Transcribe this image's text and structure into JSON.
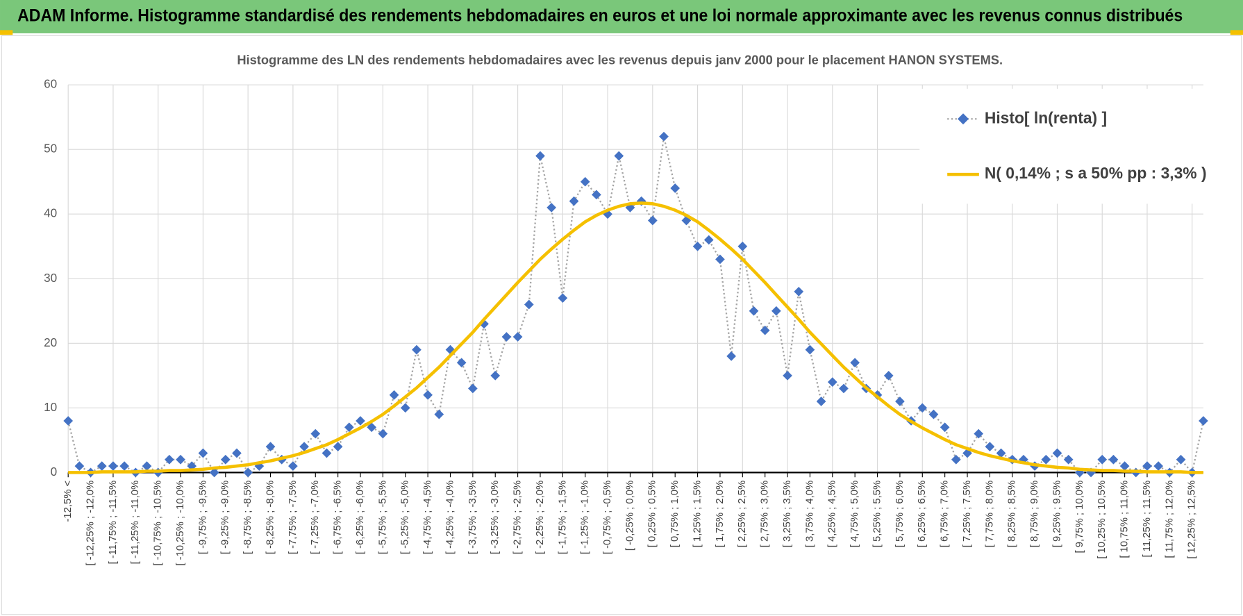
{
  "header": {
    "title": "ADAM Informe. Histogramme standardisé des rendements hebdomadaires en euros et une loi normale approximante avec les revenus connus distribués"
  },
  "chart_data": {
    "type": "line",
    "title": "Histogramme des LN des rendements hebdomadaires avec les revenus depuis janv 2000 pour le placement HANON SYSTEMS.",
    "categories": [
      "-12,5% <",
      null,
      "[ -12,25% ; -12,0%",
      null,
      "[ -11,75% ; -11,5%",
      null,
      "[ -11,25% ; -11,0%",
      null,
      "[ -10,75% ; -10,5%",
      null,
      "[ -10,25% ; -10,0%",
      null,
      "[ -9,75% ; -9,5%",
      null,
      "[ -9,25% ; -9,0%",
      null,
      "[ -8,75% ; -8,5%",
      null,
      "[ -8,25% ; -8,0%",
      null,
      "[ -7,75% ; -7,5%",
      null,
      "[ -7,25% ; -7,0%",
      null,
      "[ -6,75% ; -6,5%",
      null,
      "[ -6,25% ; -6,0%",
      null,
      "[ -5,75% ; -5,5%",
      null,
      "[ -5,25% ; -5,0%",
      null,
      "[ -4,75% ; -4,5%",
      null,
      "[ -4,25% ; -4,0%",
      null,
      "[ -3,75% ; -3,5%",
      null,
      "[ -3,25% ; -3,0%",
      null,
      "[ -2,75% ; -2,5%",
      null,
      "[ -2,25% ; -2,0%",
      null,
      "[ -1,75% ; -1,5%",
      null,
      "[ -1,25% ; -1,0%",
      null,
      "[ -0,75% ; -0,5%",
      null,
      "[ -0,25% ; 0,0%",
      null,
      "[ 0,25% ; 0,5%",
      null,
      "[ 0,75% ; 1,0%",
      null,
      "[ 1,25% ; 1,5%",
      null,
      "[ 1,75% ; 2,0%",
      null,
      "[ 2,25% ; 2,5%",
      null,
      "[ 2,75% ; 3,0%",
      null,
      "[ 3,25% ; 3,5%",
      null,
      "[ 3,75% ; 4,0%",
      null,
      "[ 4,25% ; 4,5%",
      null,
      "[ 4,75% ; 5,0%",
      null,
      "[ 5,25% ; 5,5%",
      null,
      "[ 5,75% ; 6,0%",
      null,
      "[ 6,25% ; 6,5%",
      null,
      "[ 6,75% ; 7,0%",
      null,
      "[ 7,25% ; 7,5%",
      null,
      "[ 7,75% ; 8,0%",
      null,
      "[ 8,25% ; 8,5%",
      null,
      "[ 8,75% ; 9,0%",
      null,
      "[ 9,25% ; 9,5%",
      null,
      "[ 9,75% ; 10,0%",
      null,
      "[ 10,25% ; 10,5%",
      null,
      "[ 10,75% ; 11,0%",
      null,
      "[ 11,25% ; 11,5%",
      null,
      "[ 11,75% ; 12,0%",
      null,
      "[ 12,25% ; 12,5%",
      null
    ],
    "series": [
      {
        "name": "Histo[ ln(renta) ]",
        "color": "#4472c4",
        "line_color": "#a5a5a5",
        "values": [
          8,
          1,
          0,
          1,
          1,
          1,
          0,
          1,
          0,
          2,
          2,
          1,
          3,
          0,
          2,
          3,
          0,
          1,
          4,
          2,
          1,
          4,
          6,
          3,
          4,
          7,
          8,
          7,
          6,
          12,
          10,
          19,
          12,
          9,
          19,
          17,
          13,
          23,
          15,
          21,
          21,
          26,
          49,
          41,
          27,
          42,
          45,
          43,
          40,
          49,
          41,
          42,
          39,
          52,
          44,
          39,
          35,
          36,
          33,
          18,
          35,
          25,
          22,
          25,
          15,
          28,
          19,
          11,
          14,
          13,
          17,
          13,
          12,
          15,
          11,
          8,
          10,
          9,
          7,
          2,
          3,
          6,
          4,
          3,
          2,
          2,
          1,
          2,
          3,
          2,
          0,
          0,
          2,
          2,
          1,
          0,
          1,
          1,
          0,
          2,
          0,
          8
        ]
      },
      {
        "name": "N( 0,14% ; s a 50% pp : 3,3% )",
        "color": "#f5c000",
        "values": [
          0.0,
          0.0,
          0.0,
          0.1,
          0.1,
          0.1,
          0.1,
          0.2,
          0.2,
          0.3,
          0.3,
          0.4,
          0.5,
          0.7,
          0.8,
          1.0,
          1.2,
          1.5,
          1.8,
          2.2,
          2.6,
          3.1,
          3.7,
          4.3,
          5.1,
          6.0,
          6.9,
          7.9,
          9.0,
          10.3,
          11.7,
          13.1,
          14.7,
          16.3,
          18.1,
          19.9,
          21.7,
          23.7,
          25.6,
          27.5,
          29.4,
          31.2,
          33.0,
          34.6,
          36.1,
          37.5,
          38.8,
          39.8,
          40.6,
          41.2,
          41.6,
          41.7,
          41.6,
          41.2,
          40.6,
          39.8,
          38.8,
          37.5,
          36.1,
          34.6,
          33.0,
          31.2,
          29.4,
          27.5,
          25.6,
          23.7,
          21.7,
          19.9,
          18.1,
          16.3,
          14.7,
          13.1,
          11.7,
          10.3,
          9.0,
          7.9,
          6.9,
          6.0,
          5.1,
          4.3,
          3.7,
          3.1,
          2.6,
          2.2,
          1.8,
          1.5,
          1.2,
          1.0,
          0.8,
          0.7,
          0.5,
          0.4,
          0.3,
          0.3,
          0.2,
          0.2,
          0.1,
          0.1,
          0.1,
          0.1,
          0.0,
          0.0
        ]
      }
    ],
    "ylim": [
      0,
      60
    ],
    "yticks": [
      0,
      10,
      20,
      30,
      40,
      50,
      60
    ],
    "grid": true,
    "legend": "upper right"
  }
}
